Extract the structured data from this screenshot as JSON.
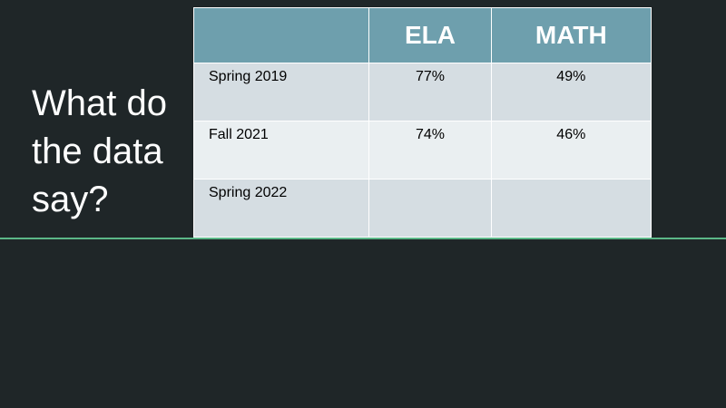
{
  "slide": {
    "title": "What do the data say?"
  },
  "table": {
    "headers": [
      "",
      "ELA",
      "MATH"
    ],
    "rows": [
      {
        "label": "Spring 2019",
        "ela": "77%",
        "math": "49%"
      },
      {
        "label": "Fall 2021",
        "ela": "74%",
        "math": "46%"
      },
      {
        "label": "Spring 2022",
        "ela": "",
        "math": ""
      }
    ]
  },
  "colors": {
    "background": "#1f2628",
    "header_fill": "#6e9fad",
    "row_fill_odd": "#d5dde2",
    "row_fill_even": "#eaeff1",
    "divider_line": "#5bb787"
  }
}
